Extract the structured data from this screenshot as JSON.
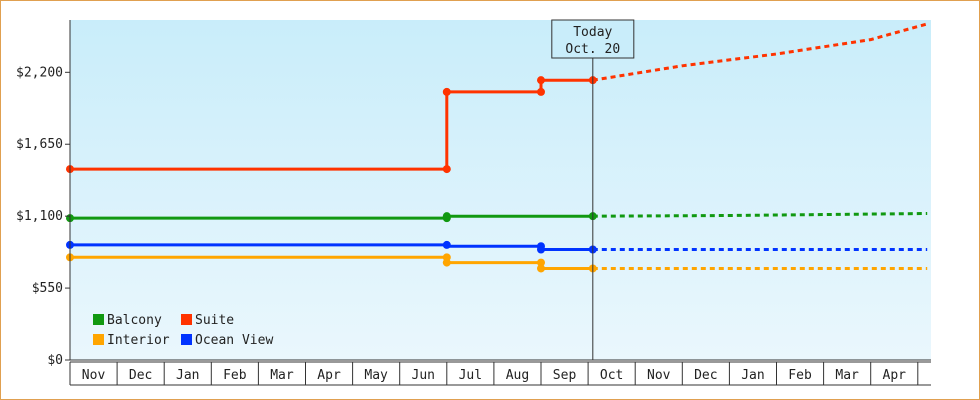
{
  "chart_data": {
    "type": "line",
    "title": "",
    "xlabel": "",
    "ylabel": "",
    "ylim": [
      0,
      2600
    ],
    "grid": false,
    "legend_position": "bottom-left",
    "y_ticks": [
      {
        "value": 0,
        "label": "$0"
      },
      {
        "value": 550,
        "label": "$550"
      },
      {
        "value": 1100,
        "label": "$1,100"
      },
      {
        "value": 1650,
        "label": "$1,650"
      },
      {
        "value": 2200,
        "label": "$2,200"
      }
    ],
    "x_categories": [
      "Nov",
      "Dec",
      "Jan",
      "Feb",
      "Mar",
      "Apr",
      "May",
      "Jun",
      "Jul",
      "Aug",
      "Sep",
      "Oct",
      "Nov",
      "Dec",
      "Jan",
      "Feb",
      "Mar",
      "Apr"
    ],
    "today_marker": {
      "line1": "Today",
      "line2": "Oct. 20",
      "x": 11.1
    },
    "series": [
      {
        "name": "Suite",
        "color": "#ff3300",
        "points": [
          [
            0,
            1460
          ],
          [
            8,
            1460
          ],
          [
            8,
            2050
          ],
          [
            10,
            2050
          ],
          [
            10,
            2140
          ],
          [
            11.1,
            2140
          ]
        ],
        "markers": [
          [
            0,
            1460
          ],
          [
            8,
            1460
          ],
          [
            8,
            2050
          ],
          [
            10,
            2050
          ],
          [
            10,
            2140
          ],
          [
            11.1,
            2140
          ]
        ],
        "forecast": [
          [
            11.1,
            2140
          ],
          [
            13,
            2250
          ],
          [
            15,
            2340
          ],
          [
            17,
            2450
          ],
          [
            18.2,
            2570
          ]
        ]
      },
      {
        "name": "Balcony",
        "color": "#119911",
        "points": [
          [
            0,
            1085
          ],
          [
            8,
            1085
          ],
          [
            8,
            1100
          ],
          [
            11.1,
            1100
          ]
        ],
        "markers": [
          [
            0,
            1085
          ],
          [
            8,
            1085
          ],
          [
            8,
            1100
          ],
          [
            11.1,
            1100
          ]
        ],
        "forecast": [
          [
            11.1,
            1100
          ],
          [
            14,
            1105
          ],
          [
            18.2,
            1120
          ]
        ]
      },
      {
        "name": "Ocean View",
        "color": "#0033ff",
        "points": [
          [
            0,
            880
          ],
          [
            8,
            880
          ],
          [
            8,
            870
          ],
          [
            10,
            870
          ],
          [
            10,
            845
          ],
          [
            11.1,
            845
          ]
        ],
        "markers": [
          [
            0,
            880
          ],
          [
            8,
            880
          ],
          [
            10,
            870
          ],
          [
            10,
            845
          ],
          [
            11.1,
            845
          ]
        ],
        "forecast": [
          [
            11.1,
            845
          ],
          [
            18.2,
            845
          ]
        ]
      },
      {
        "name": "Interior",
        "color": "#ffa500",
        "points": [
          [
            0,
            785
          ],
          [
            8,
            785
          ],
          [
            8,
            745
          ],
          [
            10,
            745
          ],
          [
            10,
            700
          ],
          [
            11.1,
            700
          ]
        ],
        "markers": [
          [
            0,
            785
          ],
          [
            8,
            785
          ],
          [
            8,
            745
          ],
          [
            10,
            745
          ],
          [
            10,
            700
          ],
          [
            11.1,
            700
          ]
        ],
        "forecast": [
          [
            11.1,
            700
          ],
          [
            18.2,
            700
          ]
        ]
      }
    ],
    "legend": [
      {
        "name": "Balcony",
        "color": "#119911"
      },
      {
        "name": "Suite",
        "color": "#ff3300"
      },
      {
        "name": "Interior",
        "color": "#ffa500"
      },
      {
        "name": "Ocean View",
        "color": "#0033ff"
      }
    ]
  }
}
